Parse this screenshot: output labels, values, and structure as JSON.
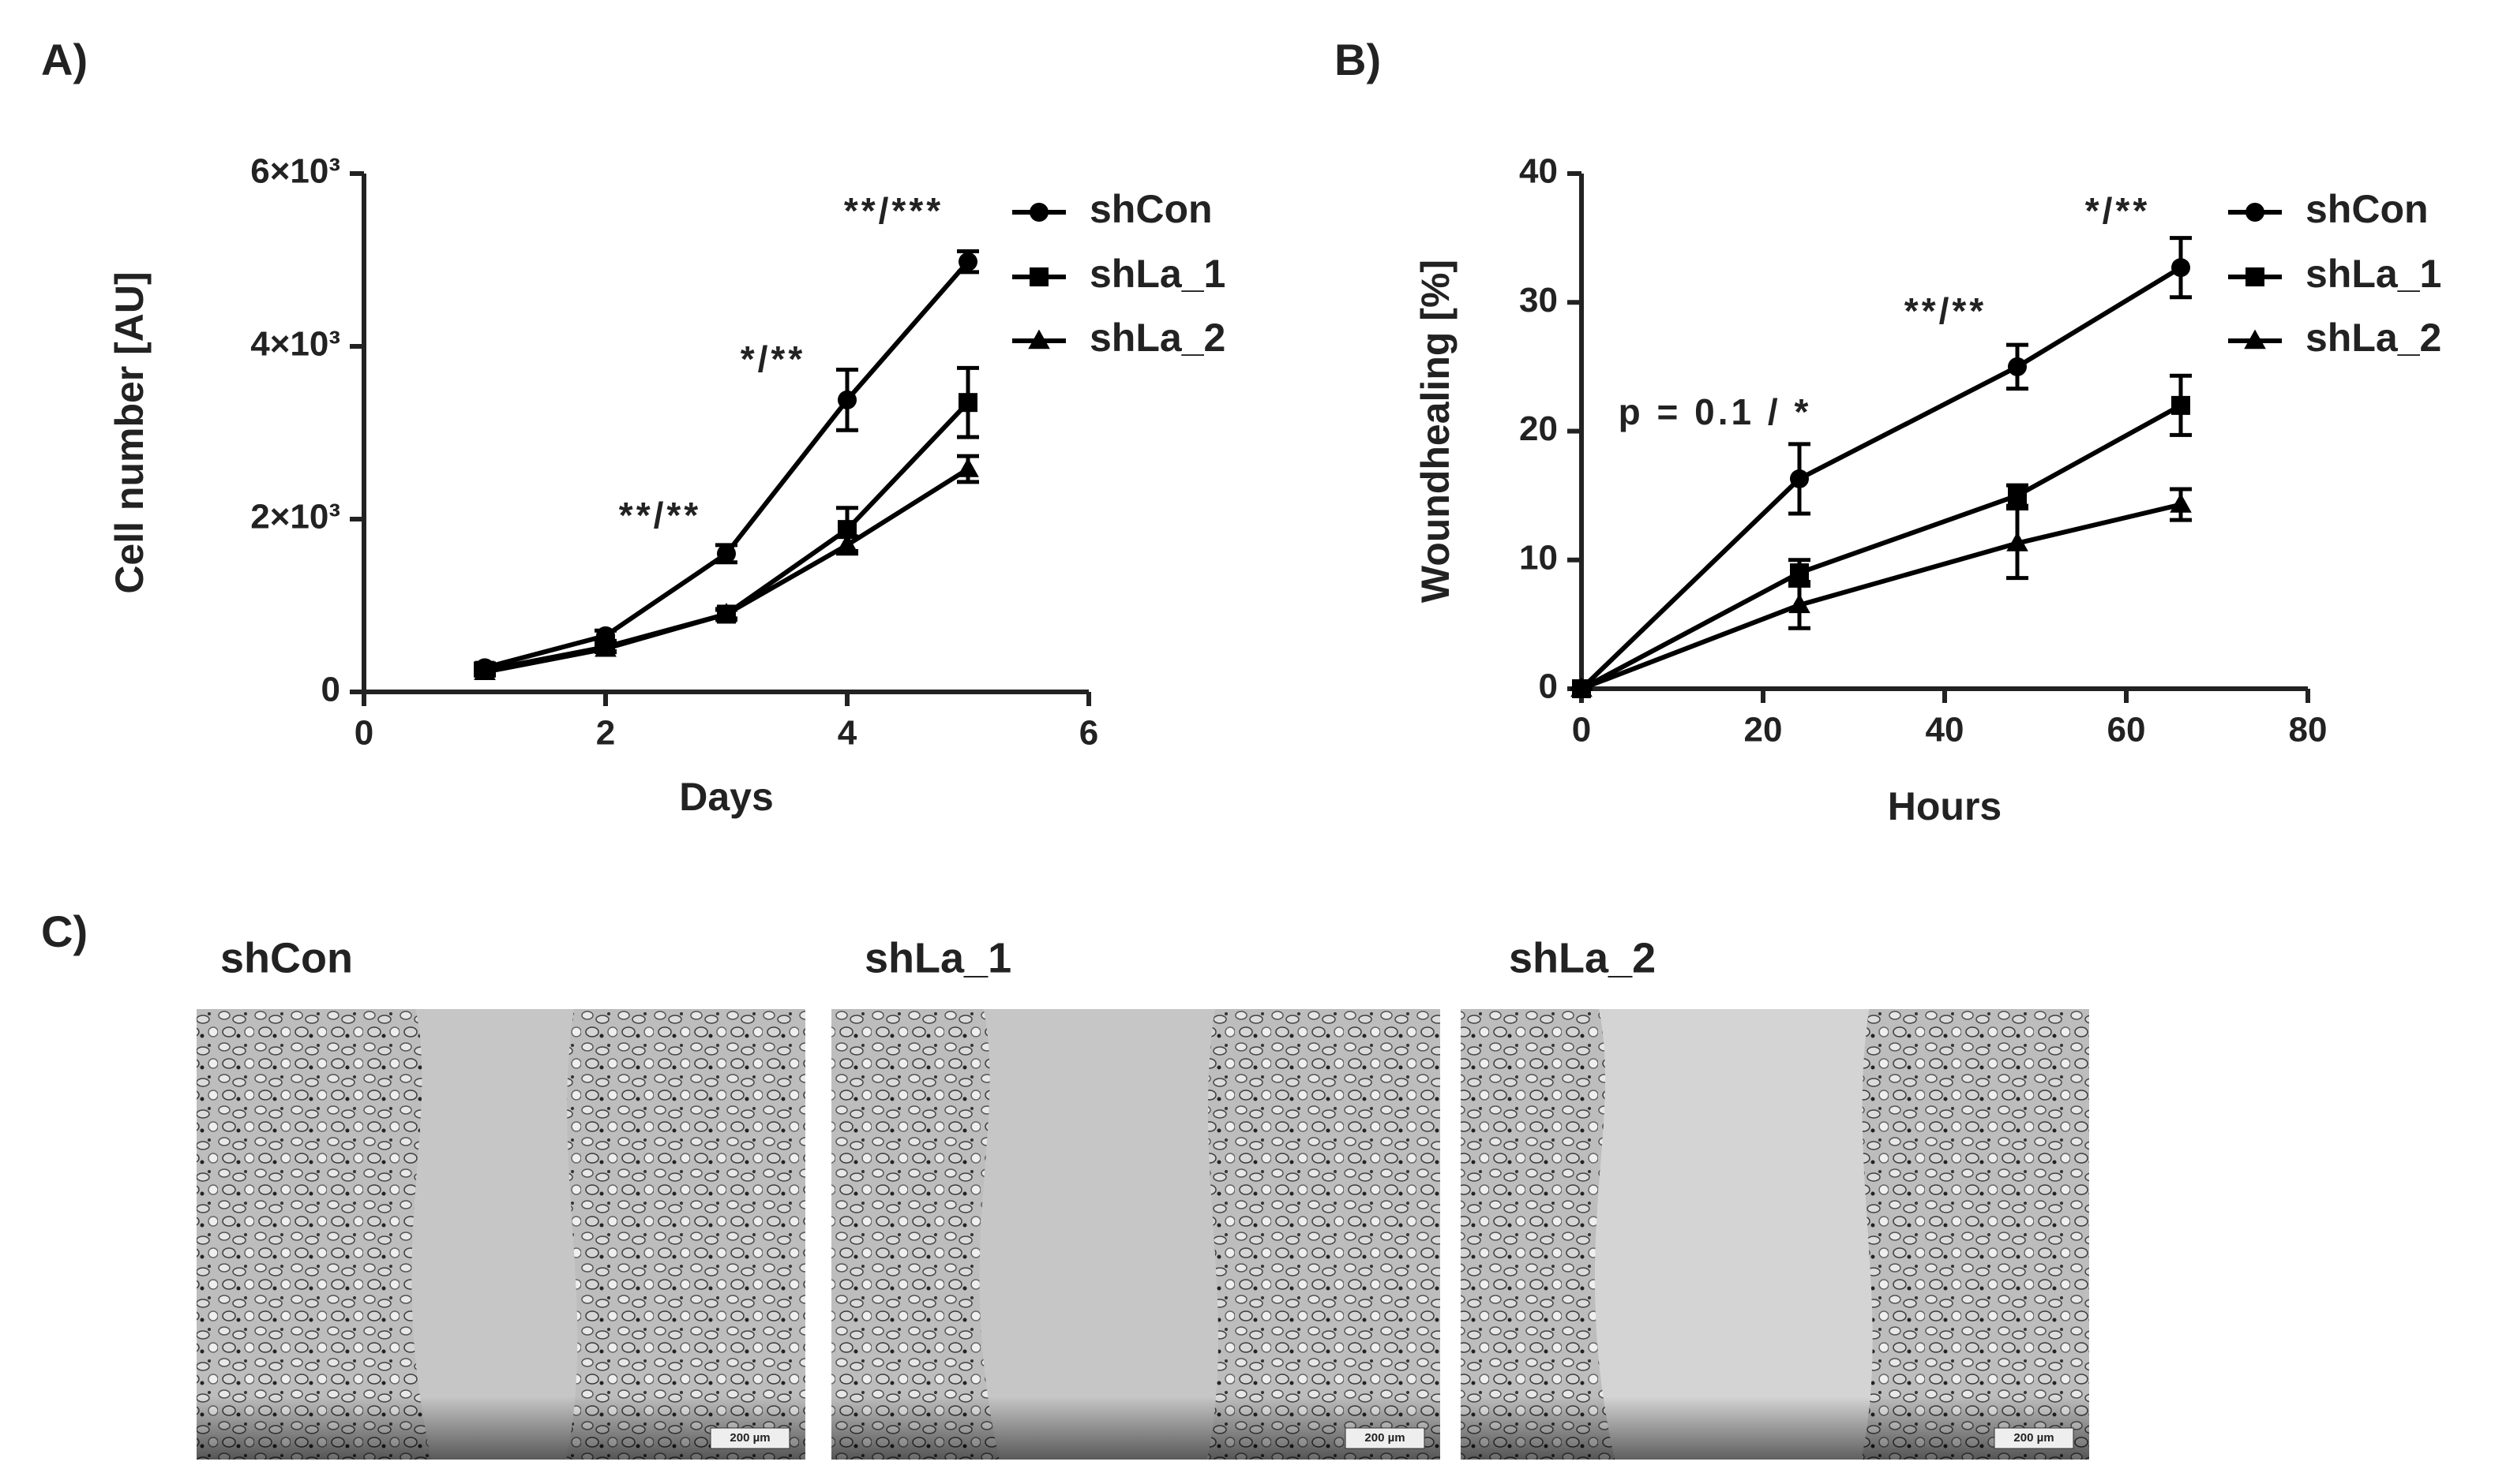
{
  "panel_labels": [
    "A)",
    "B)",
    "C)"
  ],
  "chart_data": [
    {
      "type": "line",
      "xlabel": "Days",
      "ylabel": "Cell number [AU]",
      "x": [
        1,
        2,
        3,
        4,
        5
      ],
      "xlim": [
        0,
        6
      ],
      "xticks": [
        0,
        2,
        4,
        6
      ],
      "ylim": [
        0,
        6000
      ],
      "yticks": [
        0,
        {
          "value": 2000,
          "label": "2×10³"
        },
        {
          "value": 4000,
          "label": "4×10³"
        },
        {
          "value": 6000,
          "label": "6×10³"
        }
      ],
      "legend": "upper right",
      "grid": false,
      "series": [
        {
          "name": "shCon",
          "color": "#000000",
          "marker": "circle",
          "values": [
            280,
            650,
            1600,
            3380,
            4980
          ],
          "errors": [
            50,
            60,
            100,
            350,
            120
          ]
        },
        {
          "name": "shLa_1",
          "color": "#000000",
          "marker": "square",
          "values": [
            250,
            520,
            900,
            1880,
            3350
          ],
          "errors": [
            40,
            50,
            60,
            250,
            400
          ]
        },
        {
          "name": "shLa_2",
          "color": "#000000",
          "marker": "triangle",
          "values": [
            230,
            500,
            900,
            1700,
            2580
          ],
          "errors": [
            40,
            40,
            50,
            100,
            150
          ]
        }
      ],
      "annotations": [
        "**/**",
        "*/**",
        "**/***"
      ]
    },
    {
      "type": "line",
      "xlabel": "Hours",
      "ylabel": "Woundhealing [%]",
      "x": [
        0,
        24,
        48,
        66
      ],
      "xlim": [
        0,
        80
      ],
      "xticks": [
        0,
        20,
        40,
        60,
        80
      ],
      "ylim": [
        0,
        40
      ],
      "yticks": [
        0,
        10,
        20,
        30,
        40
      ],
      "legend": "upper right",
      "grid": false,
      "series": [
        {
          "name": "shCon",
          "color": "#000000",
          "marker": "circle",
          "values": [
            0,
            16.3,
            25,
            32.7
          ],
          "errors": [
            0,
            2.7,
            1.7,
            2.3
          ]
        },
        {
          "name": "shLa_1",
          "color": "#000000",
          "marker": "square",
          "values": [
            0,
            9,
            15,
            22
          ],
          "errors": [
            0,
            1,
            0.8,
            2.3
          ]
        },
        {
          "name": "shLa_2",
          "color": "#000000",
          "marker": "triangle",
          "values": [
            0,
            6.5,
            11.3,
            14.3
          ],
          "errors": [
            0,
            1.8,
            2.7,
            1.2
          ]
        }
      ],
      "annotations": [
        "p = 0.1 / *",
        "**/**",
        "*/**"
      ]
    }
  ],
  "images": {
    "labels": [
      "shCon",
      "shLa_1",
      "shLa_2"
    ],
    "scale_bars": [
      "200 µm",
      "200 µm",
      "200 µm"
    ]
  }
}
